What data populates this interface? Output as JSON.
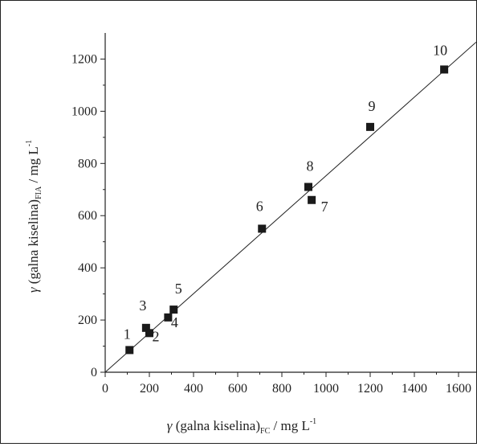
{
  "chart_data": {
    "type": "scatter",
    "title": "",
    "xlabel": {
      "var": "γ",
      "text": " (galna kiselina)",
      "sub": "FC",
      "unit": " / mg L",
      "sup": "-1"
    },
    "ylabel": {
      "var": "γ",
      "text": " (galna kiselina)",
      "sub": "FIA",
      "unit": " / mg L",
      "sup": "-1"
    },
    "xlim": [
      0,
      1680
    ],
    "ylim": [
      0,
      1300
    ],
    "xticks": [
      0,
      200,
      400,
      600,
      800,
      1000,
      1200,
      1400,
      1600
    ],
    "yticks": [
      0,
      200,
      400,
      600,
      800,
      1000,
      1200
    ],
    "grid": false,
    "legend": "none",
    "marker_color": "#1a1a1a",
    "series": [
      {
        "points": [
          {
            "label": "1",
            "x": 110,
            "y": 85
          },
          {
            "label": "2",
            "x": 200,
            "y": 150
          },
          {
            "label": "3",
            "x": 185,
            "y": 170
          },
          {
            "label": "4",
            "x": 285,
            "y": 210
          },
          {
            "label": "5",
            "x": 310,
            "y": 240
          },
          {
            "label": "6",
            "x": 710,
            "y": 550
          },
          {
            "label": "7",
            "x": 935,
            "y": 660
          },
          {
            "label": "8",
            "x": 920,
            "y": 710
          },
          {
            "label": "9",
            "x": 1200,
            "y": 940
          },
          {
            "label": "10",
            "x": 1535,
            "y": 1160
          }
        ]
      }
    ],
    "fit_line": {
      "x": [
        0,
        1680
      ],
      "y": [
        0,
        1265
      ]
    }
  }
}
